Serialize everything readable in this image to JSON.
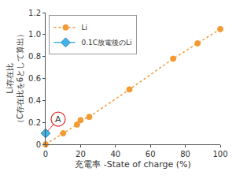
{
  "chart_data": {
    "type": "scatter",
    "xlabel": "充電率 -State of charge (%)",
    "ylabel": "Li存在比\n（C存在比を6として算出）",
    "series": [
      {
        "name": "Li",
        "color": "#f39a33",
        "marker": "circle",
        "line_style": "dot",
        "x": [
          0,
          10,
          18,
          20,
          25,
          48,
          73,
          87,
          100
        ],
        "values": [
          0,
          0.1,
          0.18,
          0.22,
          0.25,
          0.5,
          0.78,
          0.92,
          1.05
        ]
      },
      {
        "name": "0.1C放電後のLi",
        "color": "#3fb4e6",
        "marker": "diamond",
        "line_style": "dash",
        "x": [
          0
        ],
        "values": [
          0.1
        ]
      }
    ],
    "xlim": [
      0,
      100
    ],
    "ylim": [
      0,
      1.2
    ],
    "xticks": [
      0,
      20,
      40,
      60,
      80,
      100
    ],
    "yticks": [
      0,
      0.2,
      0.4,
      0.6,
      0.8,
      {
        "value": 1,
        "label": "1.0"
      },
      1.2
    ],
    "annotations": [
      {
        "text": "A",
        "x": 0,
        "y": 0.1
      }
    ],
    "legend": "upper left",
    "grid": false
  }
}
